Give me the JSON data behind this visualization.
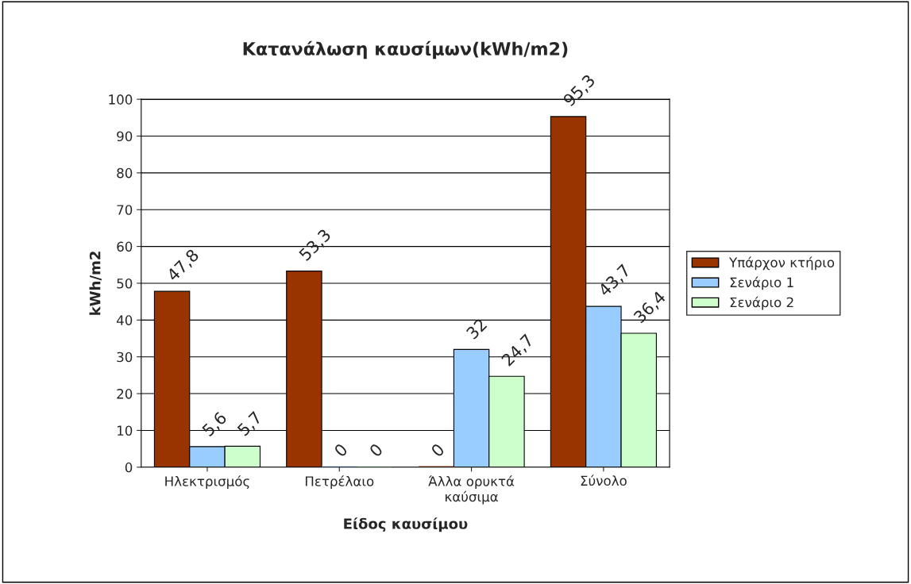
{
  "chart_data": {
    "type": "bar",
    "title": "Κατανάλωση καυσίμων(kWh/m2)",
    "xlabel": "Είδος καυσίμου",
    "ylabel": "kWh/m2",
    "categories": [
      "Ηλεκτρισμός",
      "Πετρέλαιο",
      "Άλλα ορυκτά\nκαύσιμα",
      "Σύνολο"
    ],
    "series": [
      {
        "name": "Υπάρχον κτήριο",
        "color": "#993300",
        "values": [
          47.8,
          53.3,
          0,
          95.3
        ],
        "value_labels": [
          "47,8",
          "53,3",
          "0",
          "95,3"
        ]
      },
      {
        "name": "Σενάριο 1",
        "color": "#99ccff",
        "values": [
          5.6,
          0,
          32,
          43.7
        ],
        "value_labels": [
          "5,6",
          "0",
          "32",
          "43,7"
        ]
      },
      {
        "name": "Σενάριο 2",
        "color": "#ccffcc",
        "values": [
          5.7,
          0,
          24.7,
          36.4
        ],
        "value_labels": [
          "5,7",
          "0",
          "24,7",
          "36,4"
        ]
      }
    ],
    "ylim": [
      0,
      100
    ],
    "yticks": [
      0,
      10,
      20,
      30,
      40,
      50,
      60,
      70,
      80,
      90,
      100
    ],
    "grid": "y",
    "legend": "right"
  }
}
